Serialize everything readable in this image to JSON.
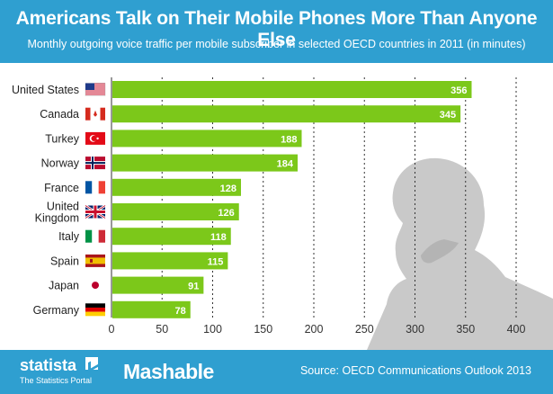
{
  "header": {
    "title": "Americans Talk on Their Mobile Phones More Than Anyone Else",
    "subtitle": "Monthly outgoing voice traffic per mobile subscriber in selected OECD countries in 2011 (in minutes)"
  },
  "footer": {
    "brand_name": "statista",
    "brand_tagline": "The Statistics Portal",
    "partner": "Mashable",
    "source": "Source: OECD Communications Outlook 2013"
  },
  "colors": {
    "header_bg": "#2f9fd0",
    "bar": "#7cc81a",
    "bar_text": "#ffffff",
    "grid": "#333333",
    "silhouette": "#c9c9c9"
  },
  "icons": {
    "silhouette": "person-on-phone-silhouette",
    "flags": [
      "flag-usa-icon",
      "flag-canada-icon",
      "flag-turkey-icon",
      "flag-norway-icon",
      "flag-france-icon",
      "flag-uk-icon",
      "flag-italy-icon",
      "flag-spain-icon",
      "flag-japan-icon",
      "flag-germany-icon"
    ]
  },
  "chart_data": {
    "type": "bar",
    "orientation": "horizontal",
    "categories": [
      "United States",
      "Canada",
      "Turkey",
      "Norway",
      "France",
      "United Kingdom",
      "Italy",
      "Spain",
      "Japan",
      "Germany"
    ],
    "values": [
      356,
      345,
      188,
      184,
      128,
      126,
      118,
      115,
      91,
      78
    ],
    "xlim": [
      0,
      400
    ],
    "xticks": [
      0,
      50,
      100,
      150,
      200,
      250,
      300,
      350,
      400
    ],
    "grid": "vertical dashed",
    "data_labels": true
  }
}
